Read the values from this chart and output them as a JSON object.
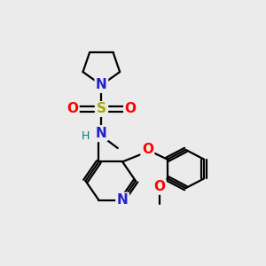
{
  "background_color": "#ebebeb",
  "figsize": [
    3.0,
    3.0
  ],
  "dpi": 100,
  "xlim": [
    0.0,
    10.0
  ],
  "ylim": [
    0.5,
    11.5
  ]
}
